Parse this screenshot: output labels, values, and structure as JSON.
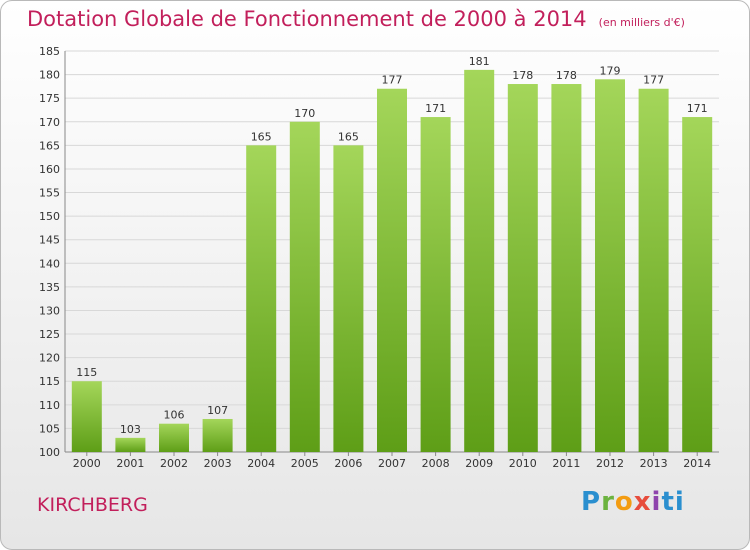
{
  "header": {
    "title": "Dotation Globale de Fonctionnement de 2000 à 2014",
    "unit": "(en milliers d'€)"
  },
  "footer": {
    "commune": "KIRCHBERG",
    "logo": "Proxiti"
  },
  "chart_data": {
    "type": "bar",
    "title": "Dotation Globale de Fonctionnement de 2000 à 2014",
    "subtitle": "(en milliers d'€)",
    "xlabel": "",
    "ylabel": "",
    "categories": [
      "2000",
      "2001",
      "2002",
      "2003",
      "2004",
      "2005",
      "2006",
      "2007",
      "2008",
      "2009",
      "2010",
      "2011",
      "2012",
      "2013",
      "2014"
    ],
    "values": [
      115,
      103,
      106,
      107,
      165,
      170,
      165,
      177,
      171,
      181,
      178,
      178,
      179,
      177,
      171
    ],
    "ylim": [
      100,
      185
    ],
    "yticks": [
      100,
      105,
      110,
      115,
      120,
      125,
      130,
      135,
      140,
      145,
      150,
      155,
      160,
      165,
      170,
      175,
      180,
      185
    ],
    "grid": true,
    "colors": {
      "bar_top": "#a4d65a",
      "bar_bottom": "#5e9e17",
      "text": "#c21f5b"
    }
  }
}
